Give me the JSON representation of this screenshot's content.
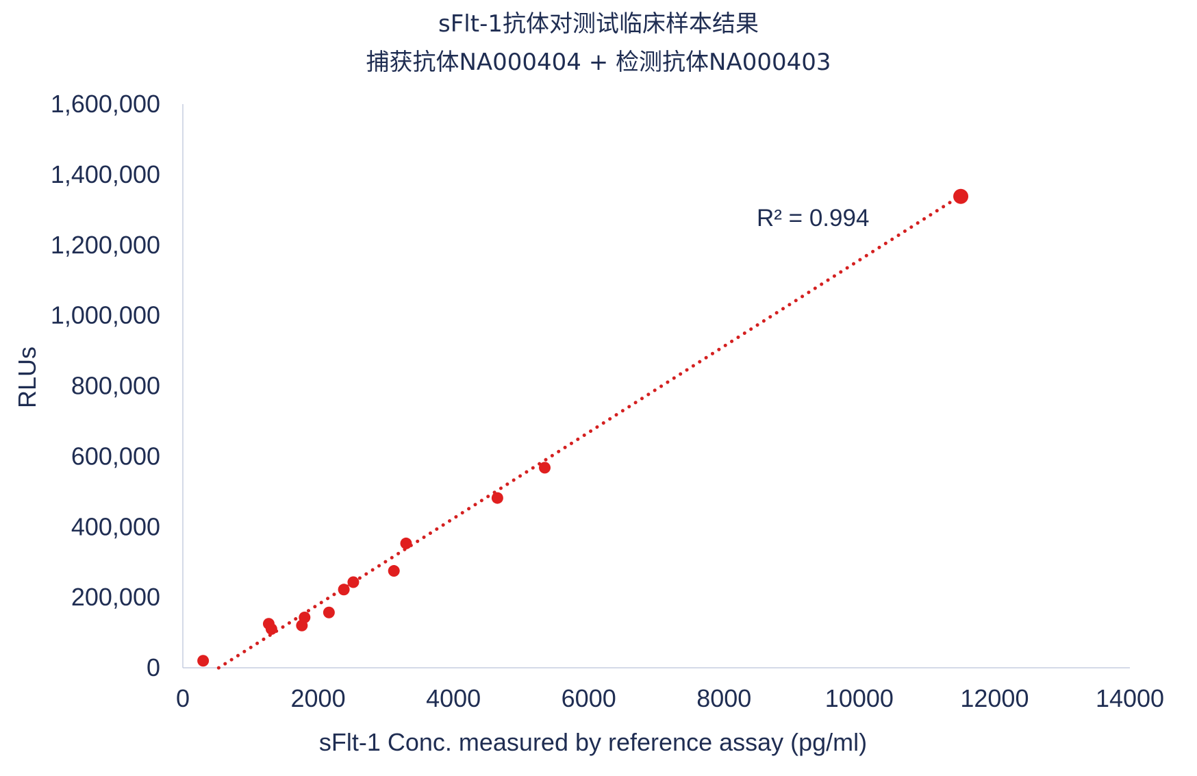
{
  "chart_data": {
    "type": "scatter",
    "title": "sFlt-1抗体对测试临床样本结果",
    "subtitle": "捕获抗体NA000404 + 检测抗体NA000403",
    "xlabel": "sFlt-1 Conc. measured by reference assay (pg/ml)",
    "ylabel": "RLUs",
    "xlim": [
      0,
      14000
    ],
    "ylim": [
      0,
      1600000
    ],
    "x_ticks": [
      0,
      2000,
      4000,
      6000,
      8000,
      10000,
      12000,
      14000
    ],
    "x_tick_labels": [
      "0",
      "2000",
      "4000",
      "6000",
      "8000",
      "10000",
      "12000",
      "14000"
    ],
    "y_ticks": [
      0,
      200000,
      400000,
      600000,
      800000,
      1000000,
      1200000,
      1400000,
      1600000
    ],
    "y_tick_labels": [
      "0",
      "200,000",
      "400,000",
      "600,000",
      "800,000",
      "1,000,000",
      "1,200,000",
      "1,400,000",
      "1,600,000"
    ],
    "series": [
      {
        "color": "#e01f1f",
        "points": [
          {
            "x": 300,
            "y": 20000
          },
          {
            "x": 1270,
            "y": 125000
          },
          {
            "x": 1310,
            "y": 110000
          },
          {
            "x": 1760,
            "y": 120000
          },
          {
            "x": 1800,
            "y": 143000
          },
          {
            "x": 2160,
            "y": 157000
          },
          {
            "x": 2380,
            "y": 222000
          },
          {
            "x": 2520,
            "y": 243000
          },
          {
            "x": 3120,
            "y": 275000
          },
          {
            "x": 3300,
            "y": 353000
          },
          {
            "x": 4650,
            "y": 482000
          },
          {
            "x": 5350,
            "y": 568000
          },
          {
            "x": 11500,
            "y": 1338000
          }
        ]
      }
    ],
    "trendline": {
      "type": "linear",
      "style": "dotted",
      "color": "#d42020",
      "x_range": [
        530,
        11480
      ],
      "slope": 122.2,
      "intercept": -65000
    },
    "annotations": [
      {
        "text": "R² = 0.994"
      }
    ],
    "grid": false,
    "legend": "none"
  }
}
